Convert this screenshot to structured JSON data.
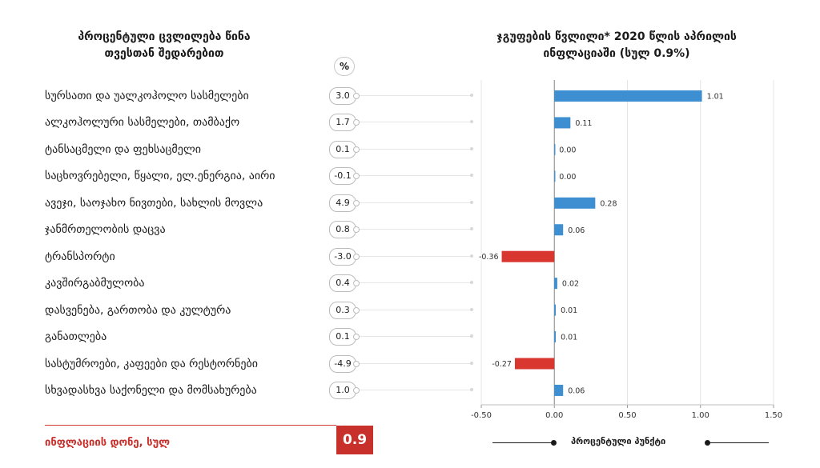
{
  "left_title": [
    "პროცენტული ცვლილება წინა",
    "თვესთან შედარებით"
  ],
  "right_title": [
    "ჯგუფების წვლილი*  2020 წლის აპრილის",
    "ინფლაციაში (სულ 0.9%)"
  ],
  "pct_header": "%",
  "footer": {
    "level_label": "ინფლაციის დონე, სულ",
    "level_value": "0.9",
    "legend": "პროცენტული პუნქტი"
  },
  "colors": {
    "positive": "#3d8fd1",
    "negative": "#d9362f",
    "accent": "#c8302c"
  },
  "chart_data": {
    "type": "bar",
    "orientation": "horizontal",
    "title": "ჯგუფების წვლილი*  2020 წლის აპრილის ინფლაციაში (სულ 0.9%)",
    "categories": [
      "სურსათი და უალკოჰოლო სასმელები",
      "ალკოჰოლური სასმელები, თამბაქო",
      "ტანსაცმელი და ფეხსაცმელი",
      "საცხოვრებელი, წყალი, ელ.ენერგია, აირი",
      "ავეჯი, საოჯახო ნივთები, სახლის მოვლა",
      "ჯანმრთელობის დაცვა",
      "ტრანსპორტი",
      "კავშირგაბმულობა",
      "დასვენება, გართობა და კულტურა",
      "განათლება",
      "სასტუმროები, კაფეები და რესტორნები",
      "სხვადასხვა საქონელი და მომსახურება"
    ],
    "monthly_change": [
      "3.0",
      "1.7",
      "0.1",
      "-0.1",
      "4.9",
      "0.8",
      "-3.0",
      "0.4",
      "0.3",
      "0.1",
      "-4.9",
      "1.0"
    ],
    "values": [
      1.01,
      0.11,
      0.0,
      0.0,
      0.28,
      0.06,
      -0.36,
      0.02,
      0.01,
      0.01,
      -0.27,
      0.06
    ],
    "value_labels": [
      "1.01",
      "0.11",
      "0.00",
      "0.00",
      "0.28",
      "0.06",
      "-0.36",
      "0.02",
      "0.01",
      "0.01",
      "-0.27",
      "0.06"
    ],
    "xlim": [
      -0.5,
      1.5
    ],
    "xticks": [
      "-0.50",
      "0.00",
      "0.50",
      "1.00",
      "1.50"
    ],
    "xlabel": "პროცენტული პუნქტი"
  }
}
